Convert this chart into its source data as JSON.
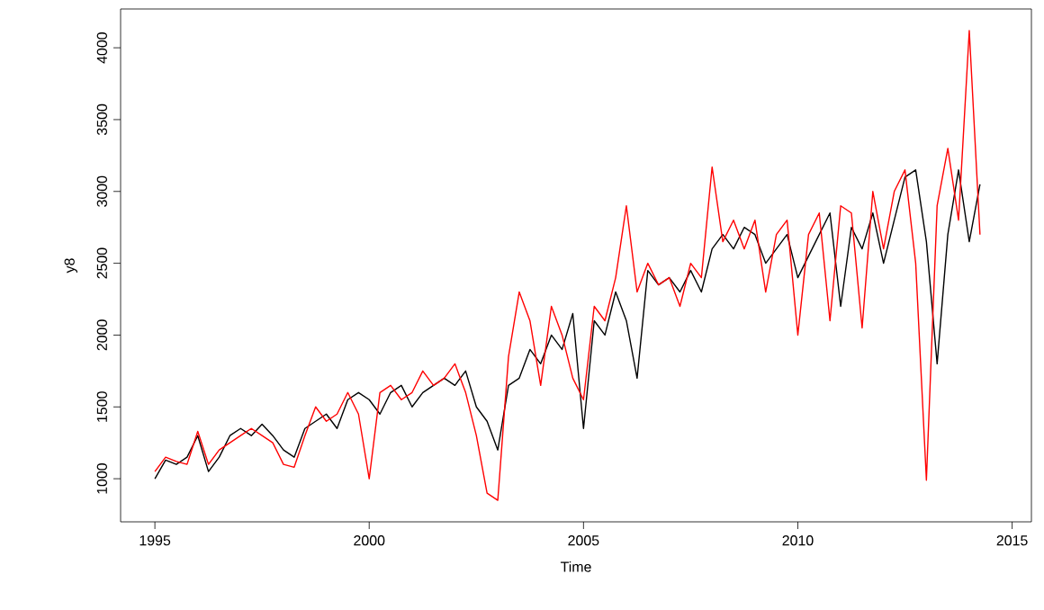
{
  "chart_data": {
    "type": "line",
    "xlabel": "Time",
    "ylabel": "y8",
    "xlim": [
      1994.2,
      2015.45
    ],
    "ylim": [
      700,
      4270
    ],
    "xticks": [
      1995,
      2000,
      2005,
      2010,
      2015
    ],
    "yticks": [
      1000,
      1500,
      2000,
      2500,
      3000,
      3500,
      4000
    ],
    "x": [
      1995.0,
      1995.25,
      1995.5,
      1995.75,
      1996.0,
      1996.25,
      1996.5,
      1996.75,
      1997.0,
      1997.25,
      1997.5,
      1997.75,
      1998.0,
      1998.25,
      1998.5,
      1998.75,
      1999.0,
      1999.25,
      1999.5,
      1999.75,
      2000.0,
      2000.25,
      2000.5,
      2000.75,
      2001.0,
      2001.25,
      2001.5,
      2001.75,
      2002.0,
      2002.25,
      2002.5,
      2002.75,
      2003.0,
      2003.25,
      2003.5,
      2003.75,
      2004.0,
      2004.25,
      2004.5,
      2004.75,
      2005.0,
      2005.25,
      2005.5,
      2005.75,
      2006.0,
      2006.25,
      2006.5,
      2006.75,
      2007.0,
      2007.25,
      2007.5,
      2007.75,
      2008.0,
      2008.25,
      2008.5,
      2008.75,
      2009.0,
      2009.25,
      2009.5,
      2009.75,
      2010.0,
      2010.25,
      2010.5,
      2010.75,
      2011.0,
      2011.25,
      2011.5,
      2011.75,
      2012.0,
      2012.25,
      2012.5,
      2012.75,
      2013.0,
      2013.25,
      2013.5,
      2013.75,
      2014.0,
      2014.25
    ],
    "line_style": "solid",
    "series": [
      {
        "color": "#000000",
        "values": [
          1000,
          1130,
          1100,
          1150,
          1300,
          1050,
          1150,
          1300,
          1350,
          1300,
          1380,
          1300,
          1200,
          1150,
          1350,
          1400,
          1450,
          1350,
          1550,
          1600,
          1550,
          1450,
          1600,
          1650,
          1500,
          1600,
          1650,
          1700,
          1650,
          1750,
          1500,
          1400,
          1200,
          1650,
          1700,
          1900,
          1800,
          2000,
          1900,
          2150,
          1350,
          2100,
          2000,
          2300,
          2100,
          1700,
          2450,
          2350,
          2400,
          2300,
          2450,
          2300,
          2600,
          2700,
          2600,
          2750,
          2700,
          2500,
          2600,
          2700,
          2400,
          2550,
          2700,
          2850,
          2200,
          2750,
          2600,
          2850,
          2500,
          2800,
          3100,
          3150,
          2650,
          1800,
          2700,
          3150,
          2650,
          3050
        ]
      },
      {
        "color": "#ff0000",
        "values": [
          1050,
          1150,
          1120,
          1100,
          1330,
          1100,
          1200,
          1250,
          1300,
          1350,
          1300,
          1250,
          1100,
          1080,
          1300,
          1500,
          1400,
          1450,
          1600,
          1450,
          1000,
          1600,
          1650,
          1550,
          1600,
          1750,
          1650,
          1700,
          1800,
          1600,
          1300,
          900,
          850,
          1850,
          2300,
          2100,
          1650,
          2200,
          2000,
          1700,
          1550,
          2200,
          2100,
          2400,
          2900,
          2300,
          2500,
          2350,
          2400,
          2200,
          2500,
          2400,
          3170,
          2650,
          2800,
          2600,
          2800,
          2300,
          2700,
          2800,
          2000,
          2700,
          2850,
          2100,
          2900,
          2850,
          2050,
          3000,
          2600,
          3000,
          3150,
          2500,
          990,
          2900,
          3300,
          2800,
          4120,
          2700
        ]
      }
    ]
  }
}
